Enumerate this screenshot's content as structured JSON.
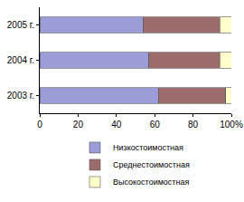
{
  "chart_data": {
    "type": "bar",
    "orientation": "horizontal",
    "stacked": true,
    "categories": [
      "2003 г.",
      "2004 г.",
      "2005 г."
    ],
    "series": [
      {
        "name": "Низкостоимостная",
        "color": "#9c9cd8",
        "values": [
          62,
          57,
          54
        ]
      },
      {
        "name": "Среднестоимостная",
        "color": "#9c6b6b",
        "values": [
          35,
          37,
          40
        ]
      },
      {
        "name": "Высокостоимостная",
        "color": "#ffffcc",
        "values": [
          3,
          6,
          6
        ]
      }
    ],
    "xlim": [
      0,
      100
    ],
    "xticks": [
      0,
      20,
      40,
      60,
      80,
      {
        "value": 100,
        "label": "100%"
      }
    ],
    "grid": false,
    "legend": "bottom"
  }
}
